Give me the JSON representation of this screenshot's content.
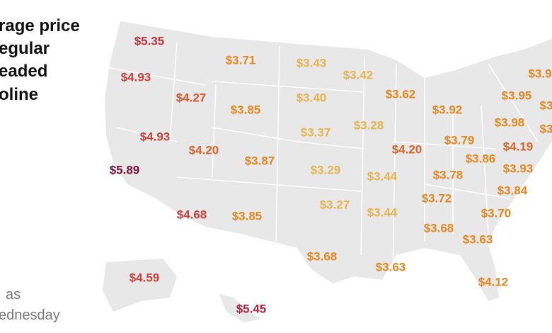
{
  "title_lines": [
    "rage price",
    "egular",
    "eaded",
    "oline"
  ],
  "note_lines": [
    "as",
    "ednesday"
  ],
  "labels": [
    {
      "text": "$5.35",
      "color": "#c0343f"
    },
    {
      "text": "$4.93",
      "color": "#c8413a"
    },
    {
      "text": "$3.71",
      "color": "#e4871f"
    },
    {
      "text": "$3.43",
      "color": "#e4b550"
    },
    {
      "text": "$3.42",
      "color": "#e4b550"
    },
    {
      "text": "$3.62",
      "color": "#e4871f"
    },
    {
      "text": "$3.9",
      "color": "#e4871f"
    },
    {
      "text": "$4.27",
      "color": "#d4572e"
    },
    {
      "text": "$3.85",
      "color": "#e4871f"
    },
    {
      "text": "$3.40",
      "color": "#e4b550"
    },
    {
      "text": "$3.92",
      "color": "#e4871f"
    },
    {
      "text": "$3.95",
      "color": "#e4871f"
    },
    {
      "text": "$3",
      "color": "#e4871f"
    },
    {
      "text": "$4.93",
      "color": "#c8413a"
    },
    {
      "text": "$4.20",
      "color": "#d8642a"
    },
    {
      "text": "$3.37",
      "color": "#e4b550"
    },
    {
      "text": "$3.28",
      "color": "#e4b550"
    },
    {
      "text": "$4.20",
      "color": "#d8642a"
    },
    {
      "text": "$3.79",
      "color": "#e4871f"
    },
    {
      "text": "$3.98",
      "color": "#e4871f"
    },
    {
      "text": "$3",
      "color": "#e4871f"
    },
    {
      "text": "$5.89",
      "color": "#7a1038"
    },
    {
      "text": "$3.87",
      "color": "#e4871f"
    },
    {
      "text": "$3.29",
      "color": "#e4b550"
    },
    {
      "text": "$3.44",
      "color": "#e4b550"
    },
    {
      "text": "$3.86",
      "color": "#e4871f"
    },
    {
      "text": "$4.19",
      "color": "#d8642a"
    },
    {
      "text": "$3.78",
      "color": "#e4871f"
    },
    {
      "text": "$3.93",
      "color": "#e4871f"
    },
    {
      "text": "$3.72",
      "color": "#e4871f"
    },
    {
      "text": "$3.84",
      "color": "#e4871f"
    },
    {
      "text": "$4.68",
      "color": "#c8413a"
    },
    {
      "text": "$3.85",
      "color": "#e4871f"
    },
    {
      "text": "$3.27",
      "color": "#e4b550"
    },
    {
      "text": "$3.44",
      "color": "#e4b550"
    },
    {
      "text": "$3.70",
      "color": "#e4871f"
    },
    {
      "text": "$3.68",
      "color": "#e4871f"
    },
    {
      "text": "$3.63",
      "color": "#e4871f"
    },
    {
      "text": "$3.68",
      "color": "#e4871f"
    },
    {
      "text": "$3.63",
      "color": "#e4871f"
    },
    {
      "text": "$4.59",
      "color": "#c8413a"
    },
    {
      "text": "$4.12",
      "color": "#e4871f"
    },
    {
      "text": "$5.45",
      "color": "#b0213f"
    }
  ]
}
